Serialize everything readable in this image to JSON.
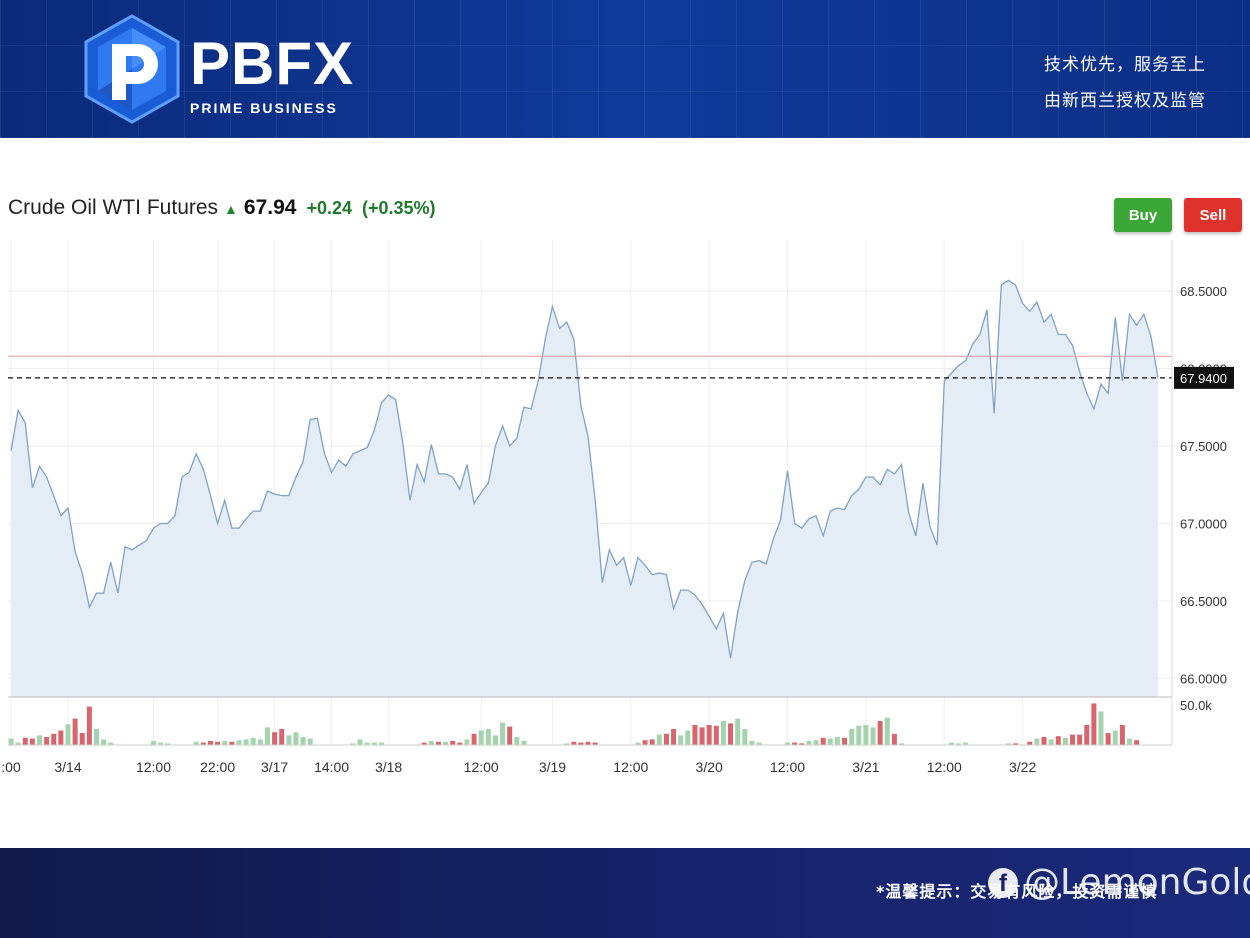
{
  "header": {
    "brand": "PBFX",
    "tagline": "PRIME BUSINESS",
    "slogan_line1": "技术优先，服务至上",
    "slogan_line2": "由新西兰授权及监管",
    "logo_icon": "pbfx-p-logo-icon"
  },
  "quote": {
    "symbol_name": "Crude Oil WTI Futures",
    "arrow_icon": "arrow-up-icon",
    "last_price": "67.94",
    "change": "+0.24",
    "change_pct": "(+0.35%)",
    "up_color": "#1f7a2c"
  },
  "buttons": {
    "buy_label": "Buy",
    "sell_label": "Sell",
    "buy_color": "#3aa635",
    "sell_color": "#e0322c"
  },
  "footer": {
    "note": "*温馨提示：交易有风险，投资需谨慎",
    "watermark": "@LemonGold",
    "watermark_icon": "facebook-icon"
  },
  "chart_data": {
    "type": "area",
    "y_ticks": [
      "68.5000",
      "68.0000",
      "67.5000",
      "67.0000",
      "66.5000",
      "66.0000"
    ],
    "y_tick_values": [
      68.5,
      68.0,
      67.5,
      67.0,
      66.5,
      66.0
    ],
    "ylim": [
      65.88,
      68.83
    ],
    "current_price_label": "67.9400",
    "current_price": 67.94,
    "reference_line_value": 68.08,
    "volume_tick_label": "50.0k",
    "volume_tick_value": 50000,
    "x_ticks": [
      ":00",
      "3/14",
      "12:00",
      "22:00",
      "3/17",
      "14:00",
      "3/18",
      "12:00",
      "3/19",
      "12:00",
      "3/20",
      "12:00",
      "3/21",
      "12:00",
      "3/22"
    ],
    "x_tick_index": [
      0,
      8,
      20,
      29,
      37,
      45,
      53,
      66,
      76,
      87,
      98,
      109,
      120,
      131,
      142
    ],
    "series": [
      {
        "values": [
          67.47,
          67.73,
          67.65,
          67.23,
          67.37,
          67.3,
          67.18,
          67.05,
          67.1,
          66.82,
          66.68,
          66.46,
          66.55,
          66.55,
          66.75,
          66.55,
          66.85,
          66.83,
          66.86,
          66.89,
          66.97,
          67.0,
          67.0,
          67.05,
          67.3,
          67.33,
          67.45,
          67.35,
          67.18,
          67.0,
          67.15,
          66.97,
          66.97,
          67.03,
          67.08,
          67.08,
          67.21,
          67.19,
          67.18,
          67.18,
          67.3,
          67.4,
          67.67,
          67.68,
          67.45,
          67.33,
          67.41,
          67.37,
          67.45,
          67.47,
          67.49,
          67.6,
          67.78,
          67.83,
          67.8,
          67.52,
          67.15,
          67.38,
          67.27,
          67.51,
          67.32,
          67.32,
          67.3,
          67.22,
          67.38,
          67.13,
          67.2,
          67.26,
          67.5,
          67.63,
          67.5,
          67.55,
          67.75,
          67.74,
          67.92,
          68.19,
          68.4,
          68.26,
          68.3,
          68.19,
          67.76,
          67.56,
          67.15,
          66.62,
          66.83,
          66.73,
          66.78,
          66.6,
          66.78,
          66.73,
          66.67,
          66.68,
          66.67,
          66.45,
          66.57,
          66.57,
          66.54,
          66.48,
          66.4,
          66.32,
          66.42,
          66.13,
          66.43,
          66.63,
          66.75,
          66.76,
          66.74,
          66.9,
          67.02,
          67.34,
          67.0,
          66.97,
          67.03,
          67.05,
          66.92,
          67.08,
          67.1,
          67.09,
          67.18,
          67.22,
          67.3,
          67.3,
          67.25,
          67.35,
          67.32,
          67.38,
          67.07,
          66.92,
          67.26,
          66.98,
          66.86,
          67.92,
          67.97,
          68.02,
          68.05,
          68.16,
          68.22,
          68.38,
          67.71,
          68.54,
          68.57,
          68.54,
          68.42,
          68.37,
          68.43,
          68.3,
          68.35,
          68.22,
          68.22,
          68.15,
          67.98,
          67.84,
          67.74,
          67.9,
          67.84,
          68.33,
          67.92,
          68.35,
          68.28,
          68.35,
          68.21,
          67.94
        ],
        "color": "#7fa3c4",
        "fill": "#e4edf5"
      }
    ],
    "volume": [
      8000,
      3000,
      9000,
      8000,
      12000,
      10000,
      14000,
      18000,
      26000,
      33000,
      15000,
      48000,
      20000,
      7000,
      3000,
      0,
      0,
      0,
      0,
      0,
      5000,
      3000,
      2000,
      0,
      0,
      0,
      4000,
      3000,
      5000,
      4000,
      5000,
      4000,
      6000,
      7000,
      9000,
      7000,
      22000,
      16000,
      20000,
      12000,
      16000,
      10000,
      8000,
      0,
      0,
      0,
      0,
      0,
      2000,
      7000,
      3000,
      3000,
      3000,
      0,
      0,
      0,
      0,
      0,
      3000,
      5000,
      4000,
      4000,
      5000,
      3000,
      7000,
      14000,
      18000,
      20000,
      12000,
      28000,
      23000,
      10000,
      5000,
      0,
      0,
      0,
      0,
      0,
      2000,
      4000,
      3000,
      4000,
      3000,
      0,
      0,
      0,
      0,
      0,
      3000,
      6000,
      7000,
      13000,
      14000,
      20000,
      12000,
      18000,
      25000,
      22000,
      25000,
      24000,
      30000,
      27000,
      33000,
      20000,
      5000,
      3000,
      0,
      0,
      0,
      3000,
      3000,
      2000,
      5000,
      6000,
      9000,
      8000,
      10000,
      9000,
      20000,
      24000,
      25000,
      22000,
      30000,
      34000,
      14000,
      2000,
      0,
      0,
      0,
      0,
      0,
      0,
      3000,
      2000,
      3000,
      0,
      0,
      0,
      0,
      0,
      2000,
      2000,
      0,
      4000,
      8000,
      10000,
      7000,
      11000,
      9000,
      13000,
      13000,
      25000,
      52000,
      42000,
      15000,
      18000,
      25000,
      8000,
      6000
    ],
    "volume_colors": {
      "up": "#a4d4ae",
      "down": "#d9656c"
    },
    "grid": true,
    "legend": "none"
  }
}
